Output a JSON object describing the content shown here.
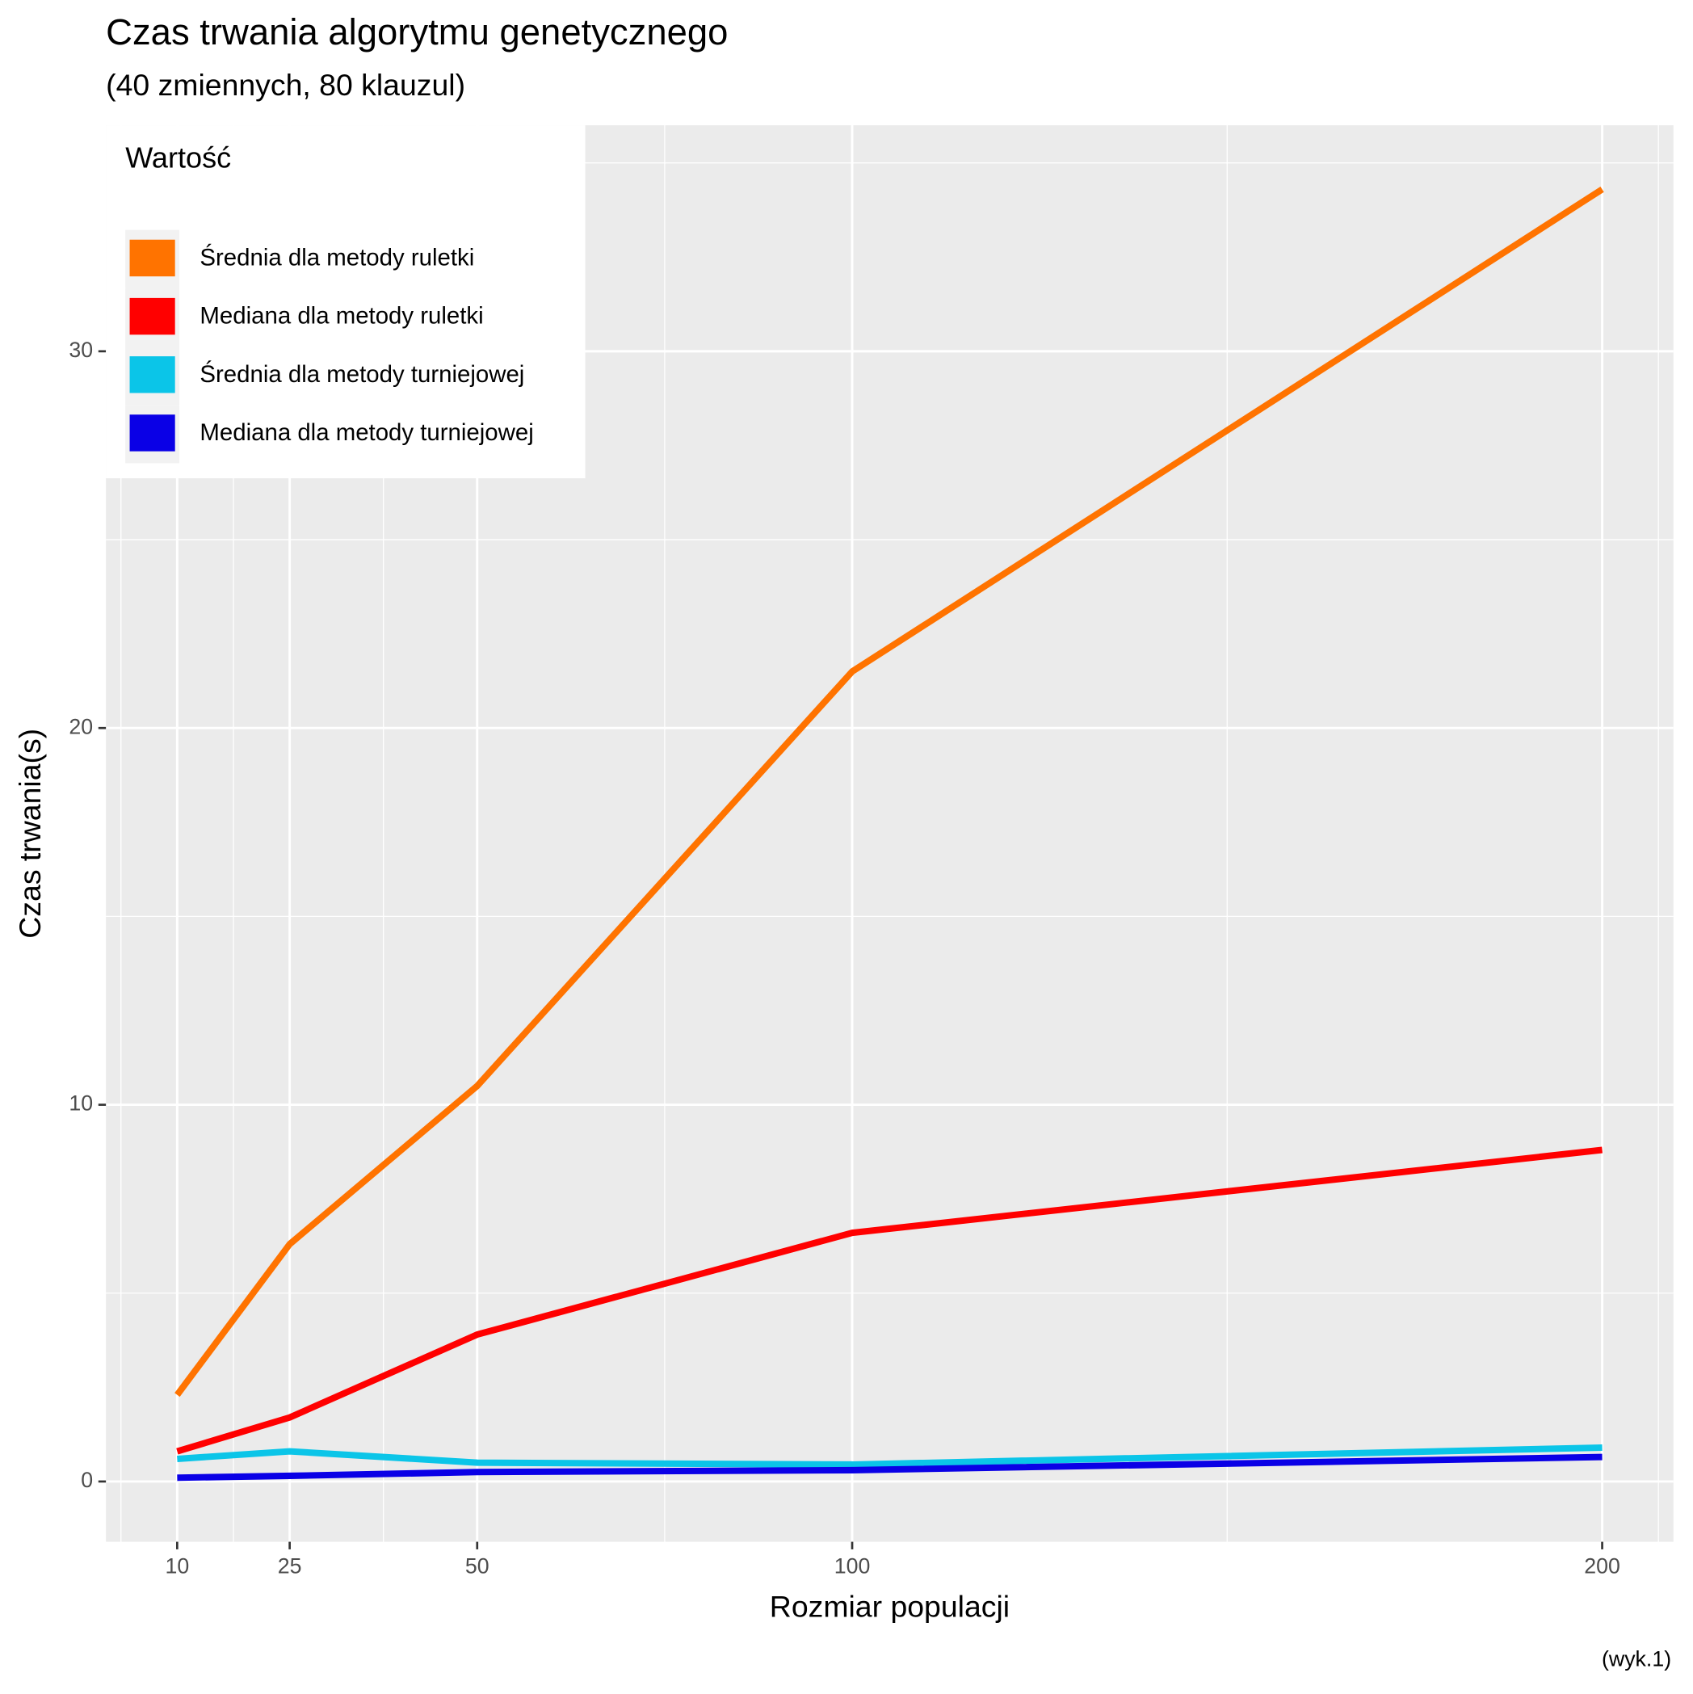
{
  "chart_data": {
    "type": "line",
    "title": "Czas trwania algorytmu genetycznego",
    "subtitle": "(40 zmiennych, 80 klauzul)",
    "caption": "(wyk.1)",
    "x_label": "Rozmiar populacji",
    "y_label": "Czas trwania(s)",
    "legend_title": "Wartość",
    "legend_position": "top-left",
    "x": [
      10,
      25,
      50,
      100,
      200
    ],
    "series": [
      {
        "name": "Średnia dla metody ruletki",
        "color": "#ff7300",
        "values": [
          2.3,
          6.3,
          10.5,
          21.5,
          34.3
        ]
      },
      {
        "name": "Mediana dla metody ruletki",
        "color": "#ff0000",
        "values": [
          0.8,
          1.7,
          3.9,
          6.6,
          8.8
        ]
      },
      {
        "name": "Średnia dla metody turniejowej",
        "color": "#0bc5e8",
        "values": [
          0.6,
          0.8,
          0.5,
          0.45,
          0.9
        ]
      },
      {
        "name": "Mediana dla metody turniejowej",
        "color": "#0a00e6",
        "values": [
          0.1,
          0.15,
          0.25,
          0.3,
          0.65
        ]
      }
    ],
    "xlim": [
      0.5,
      209.5
    ],
    "ylim": [
      -1.6,
      36.0
    ],
    "xticks": [
      10,
      25,
      50,
      100,
      200
    ],
    "yticks": [
      0,
      10,
      20,
      30
    ],
    "x_minor_grid": [
      2.5,
      17.5,
      37.5,
      75,
      150,
      207.5
    ],
    "y_minor_grid": [
      5,
      15,
      25,
      35
    ],
    "grid": true
  }
}
